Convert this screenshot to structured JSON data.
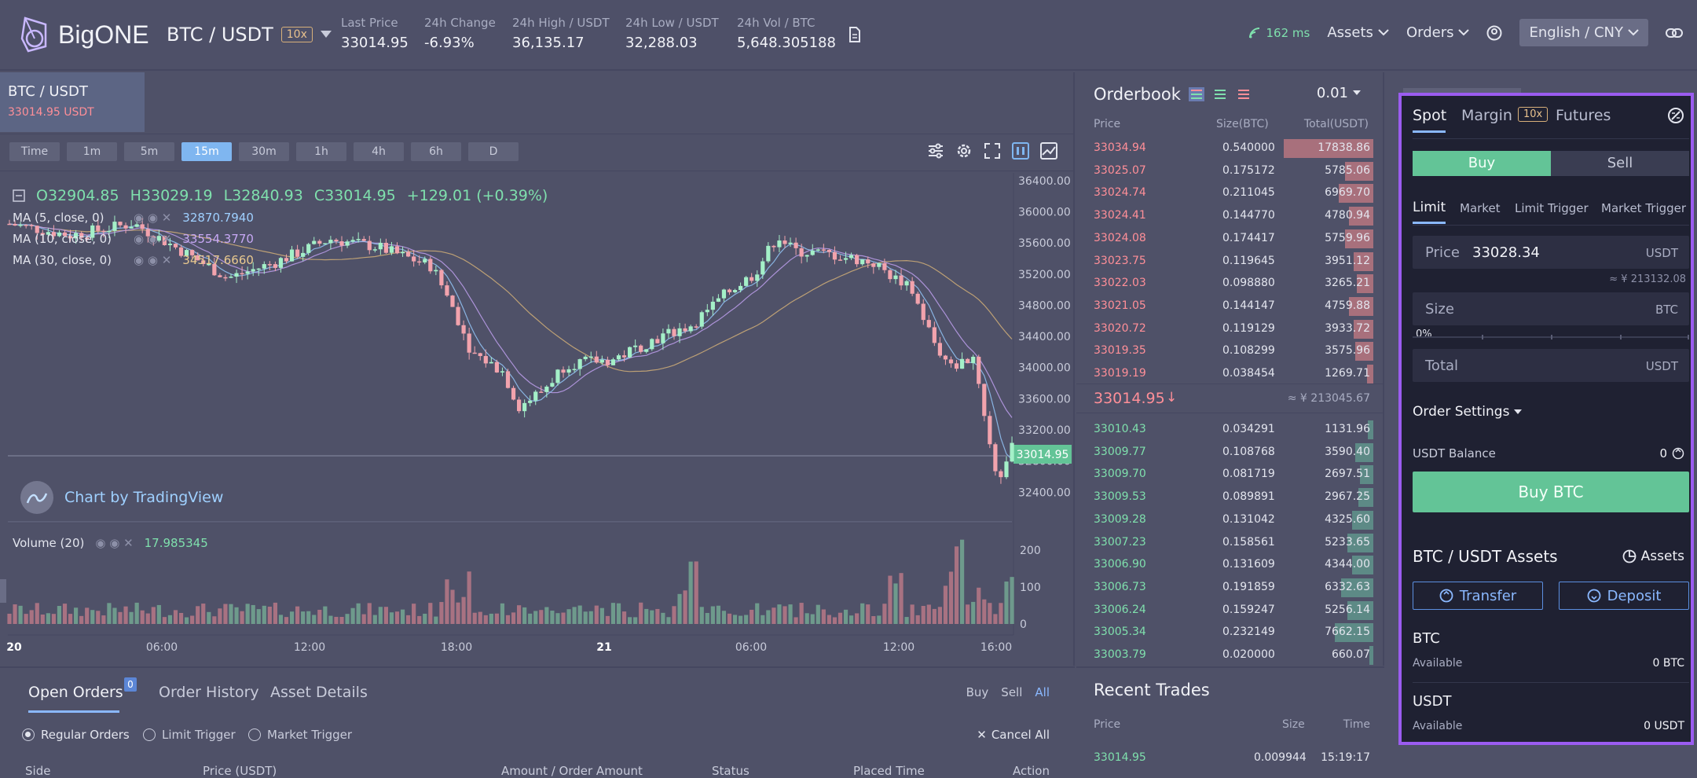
{
  "header": {
    "brand": "BigONE",
    "pair": "BTC / USDT",
    "leverage": "10x",
    "stats": [
      {
        "label": "Last Price",
        "value": "33014.95",
        "tone": "green"
      },
      {
        "label": "24h Change",
        "value": "-6.93%",
        "tone": "red"
      },
      {
        "label": "24h High / USDT",
        "value": "36,135.17",
        "tone": "normal"
      },
      {
        "label": "24h Low / USDT",
        "value": "32,288.03",
        "tone": "normal"
      },
      {
        "label": "24h Vol / BTC",
        "value": "5,648.305188",
        "tone": "normal"
      }
    ],
    "latency": "162 ms",
    "assets_menu": "Assets",
    "orders_menu": "Orders",
    "language": "English / CNY"
  },
  "chart": {
    "pair_tab": "BTC / USDT",
    "pair_price": "33014.95 USDT",
    "intervals": [
      "Time",
      "1m",
      "5m",
      "15m",
      "30m",
      "1h",
      "4h",
      "6h",
      "D"
    ],
    "active_interval": "15m",
    "ohlc": {
      "o": "O32904.85",
      "h": "H33029.19",
      "l": "L32840.93",
      "c": "C33014.95",
      "chg": "+129.01 (+0.39%)"
    },
    "ma": [
      {
        "label": "MA (5, close, 0)",
        "value": "32870.7940",
        "color": "#9fd0ff"
      },
      {
        "label": "MA (10, close, 0)",
        "value": "33554.3770",
        "color": "#c7a8f5"
      },
      {
        "label": "MA (30, close, 0)",
        "value": "34517.6660",
        "color": "#e9c98f"
      }
    ],
    "tv_label": "Chart by TradingView",
    "price_ticks": [
      "36400.00",
      "36000.00",
      "35600.00",
      "35200.00",
      "34800.00",
      "34400.00",
      "34000.00",
      "33600.00",
      "33200.00",
      "32800.00",
      "32400.00"
    ],
    "current_price_tag": "33014.95",
    "volume_label": "Volume (20)",
    "volume_value": "17.985345",
    "volume_ticks": [
      "200",
      "100",
      "0"
    ],
    "time_ticks": [
      "20",
      "06:00",
      "12:00",
      "18:00",
      "21",
      "06:00",
      "12:00",
      "16:00"
    ]
  },
  "orders": {
    "tabs": [
      "Open Orders",
      "Order History",
      "Asset Details"
    ],
    "badge": "0",
    "filters": [
      "Buy",
      "Sell",
      "All"
    ],
    "radios": [
      "Regular Orders",
      "Limit Trigger",
      "Market Trigger"
    ],
    "cancel_all": "Cancel All",
    "columns": [
      "Side",
      "Price (USDT)",
      "Amount / Order Amount",
      "Status",
      "Placed Time",
      "Action"
    ]
  },
  "orderbook": {
    "title": "Orderbook",
    "precision": "0.01",
    "headers": [
      "Price",
      "Size(BTC)",
      "Total(USDT)"
    ],
    "asks": [
      {
        "price": "33034.94",
        "size": "0.540000",
        "total": "17838.86",
        "depth": 1.0
      },
      {
        "price": "33025.07",
        "size": "0.175172",
        "total": "5785.06",
        "depth": 0.32
      },
      {
        "price": "33024.74",
        "size": "0.211045",
        "total": "6969.70",
        "depth": 0.39
      },
      {
        "price": "33024.41",
        "size": "0.144770",
        "total": "4780.94",
        "depth": 0.27
      },
      {
        "price": "33024.08",
        "size": "0.174417",
        "total": "5759.96",
        "depth": 0.32
      },
      {
        "price": "33023.75",
        "size": "0.119645",
        "total": "3951.12",
        "depth": 0.22
      },
      {
        "price": "33022.03",
        "size": "0.098880",
        "total": "3265.21",
        "depth": 0.18
      },
      {
        "price": "33021.05",
        "size": "0.144147",
        "total": "4759.88",
        "depth": 0.27
      },
      {
        "price": "33020.72",
        "size": "0.119129",
        "total": "3933.72",
        "depth": 0.22
      },
      {
        "price": "33019.35",
        "size": "0.108299",
        "total": "3575.96",
        "depth": 0.2
      },
      {
        "price": "33019.19",
        "size": "0.038454",
        "total": "1269.71",
        "depth": 0.07
      }
    ],
    "last_price": "33014.95",
    "last_price_cny": "≈ ¥ 213045.67",
    "bids": [
      {
        "price": "33010.43",
        "size": "0.034291",
        "total": "1131.96",
        "depth": 0.06
      },
      {
        "price": "33009.77",
        "size": "0.108768",
        "total": "3590.40",
        "depth": 0.2
      },
      {
        "price": "33009.70",
        "size": "0.081719",
        "total": "2697.51",
        "depth": 0.15
      },
      {
        "price": "33009.53",
        "size": "0.089891",
        "total": "2967.25",
        "depth": 0.17
      },
      {
        "price": "33009.28",
        "size": "0.131042",
        "total": "4325.60",
        "depth": 0.24
      },
      {
        "price": "33007.23",
        "size": "0.158561",
        "total": "5233.65",
        "depth": 0.29
      },
      {
        "price": "33006.90",
        "size": "0.131609",
        "total": "4344.00",
        "depth": 0.24
      },
      {
        "price": "33006.73",
        "size": "0.191859",
        "total": "6332.63",
        "depth": 0.36
      },
      {
        "price": "33006.24",
        "size": "0.159247",
        "total": "5256.14",
        "depth": 0.29
      },
      {
        "price": "33005.34",
        "size": "0.232149",
        "total": "7662.15",
        "depth": 0.43
      },
      {
        "price": "33003.79",
        "size": "0.020000",
        "total": "660.07",
        "depth": 0.04
      }
    ]
  },
  "recent_trades": {
    "title": "Recent Trades",
    "headers": [
      "Price",
      "Size",
      "Time"
    ],
    "rows": [
      {
        "price": "33014.95",
        "size": "0.009944",
        "time": "15:19:17"
      }
    ]
  },
  "trade": {
    "tabs": [
      "Spot",
      "Margin",
      "Futures"
    ],
    "margin_leverage": "10x",
    "buy": "Buy",
    "sell": "Sell",
    "order_types": [
      "Limit",
      "Market",
      "Limit Trigger",
      "Market Trigger"
    ],
    "price_label": "Price",
    "price_value": "33028.34",
    "price_unit": "USDT",
    "price_cny": "≈ ¥ 213132.08",
    "size_label": "Size",
    "size_unit": "BTC",
    "slider_pct": "0%",
    "total_label": "Total",
    "total_unit": "USDT",
    "order_settings": "Order Settings",
    "balance_label": "USDT Balance",
    "balance_value": "0",
    "buy_button": "Buy BTC",
    "assets_title": "BTC / USDT Assets",
    "assets_link": "Assets",
    "transfer": "Transfer",
    "deposit": "Deposit",
    "btc_label": "BTC",
    "btc_available_label": "Available",
    "btc_available": "0 BTC",
    "usdt_label": "USDT",
    "usdt_available_label": "Available",
    "usdt_available": "0 USDT"
  },
  "colors": {
    "accent": "#7fb6f0",
    "buy": "#63c497",
    "sell": "#ff8f98",
    "highlight": "#9b5cf0"
  }
}
